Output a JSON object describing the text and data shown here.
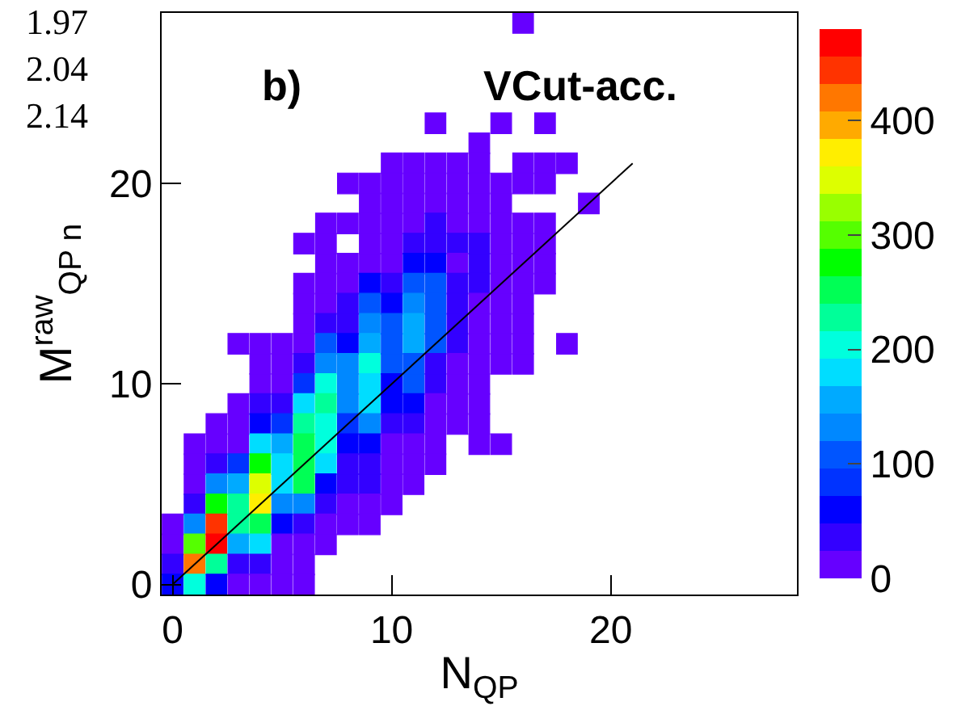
{
  "chart_data": {
    "type": "scatter",
    "marker": "square",
    "xlabel": "N$_{QP}$",
    "ylabel": "M$^{raw}$$_{QP n}$",
    "annotations": [
      "b)",
      "VCut-acc.",
      "1.97",
      "2.04",
      "2.14"
    ],
    "xlim": [
      -0.5,
      28.5
    ],
    "ylim": [
      -0.5,
      28.5
    ],
    "xticks": [
      0,
      10,
      20
    ],
    "yticks": [
      0,
      10,
      20
    ],
    "clim": [
      0,
      480
    ],
    "cticks": [
      0,
      100,
      200,
      300,
      400
    ],
    "x": [
      16,
      12,
      15,
      17,
      14,
      10,
      11,
      12,
      13,
      14,
      16,
      17,
      18,
      8,
      9,
      10,
      11,
      12,
      13,
      14,
      15,
      16,
      17,
      9,
      10,
      11,
      12,
      13,
      14,
      15,
      19,
      7,
      8,
      9,
      10,
      11,
      12,
      13,
      14,
      15,
      16,
      17,
      6,
      7,
      9,
      10,
      11,
      12,
      13,
      14,
      15,
      16,
      17,
      7,
      8,
      9,
      10,
      11,
      12,
      13,
      14,
      15,
      16,
      17,
      6,
      7,
      8,
      9,
      10,
      11,
      12,
      13,
      14,
      15,
      16,
      17,
      6,
      7,
      8,
      9,
      10,
      11,
      12,
      13,
      14,
      15,
      16,
      6,
      7,
      8,
      9,
      10,
      11,
      12,
      13,
      14,
      15,
      16,
      3,
      4,
      5,
      6,
      7,
      8,
      9,
      10,
      11,
      12,
      13,
      14,
      15,
      16,
      18,
      4,
      5,
      6,
      7,
      8,
      9,
      10,
      11,
      12,
      13,
      14,
      15,
      16,
      4,
      5,
      6,
      7,
      8,
      9,
      10,
      11,
      12,
      13,
      14,
      3,
      4,
      5,
      6,
      7,
      8,
      9,
      10,
      11,
      12,
      13,
      14,
      2,
      3,
      4,
      5,
      6,
      7,
      8,
      9,
      10,
      11,
      12,
      13,
      14,
      1,
      2,
      3,
      4,
      5,
      6,
      7,
      8,
      9,
      10,
      11,
      12,
      14,
      15,
      1,
      2,
      3,
      4,
      5,
      6,
      7,
      8,
      9,
      10,
      11,
      12,
      1,
      2,
      3,
      4,
      5,
      6,
      7,
      8,
      9,
      10,
      11,
      1,
      2,
      3,
      4,
      5,
      6,
      7,
      8,
      9,
      10,
      0,
      1,
      2,
      3,
      4,
      5,
      6,
      7,
      8,
      9,
      0,
      1,
      2,
      3,
      4,
      5,
      6,
      7,
      0,
      1,
      2,
      3,
      4,
      5,
      6,
      0,
      1,
      2,
      3,
      4,
      5,
      6
    ],
    "values": [
      28,
      23,
      23,
      23,
      22,
      21,
      21,
      21,
      21,
      21,
      21,
      21,
      21,
      20,
      20,
      20,
      20,
      20,
      20,
      20,
      20,
      20,
      20,
      19,
      19,
      19,
      19,
      19,
      19,
      19,
      19,
      18,
      18,
      18,
      18,
      18,
      18,
      18,
      18,
      18,
      18,
      18,
      17,
      17,
      17,
      17,
      17,
      17,
      17,
      17,
      17,
      17,
      17,
      16,
      16,
      16,
      16,
      16,
      16,
      16,
      16,
      16,
      16,
      16,
      15,
      15,
      15,
      15,
      15,
      15,
      15,
      15,
      15,
      15,
      15,
      15,
      14,
      14,
      14,
      14,
      14,
      14,
      14,
      14,
      14,
      14,
      14,
      13,
      13,
      13,
      13,
      13,
      13,
      13,
      13,
      13,
      13,
      13,
      12,
      12,
      12,
      12,
      12,
      12,
      12,
      12,
      12,
      12,
      12,
      12,
      12,
      12,
      12,
      11,
      11,
      11,
      11,
      11,
      11,
      11,
      11,
      11,
      11,
      11,
      11,
      11,
      10,
      10,
      10,
      10,
      10,
      10,
      10,
      10,
      10,
      10,
      10,
      9,
      9,
      9,
      9,
      9,
      9,
      9,
      9,
      9,
      9,
      9,
      9,
      8,
      8,
      8,
      8,
      8,
      8,
      8,
      8,
      8,
      8,
      8,
      8,
      8,
      7,
      7,
      7,
      7,
      7,
      7,
      7,
      7,
      7,
      7,
      7,
      7,
      7,
      7,
      6,
      6,
      6,
      6,
      6,
      6,
      6,
      6,
      6,
      6,
      6,
      6,
      5,
      5,
      5,
      5,
      5,
      5,
      5,
      5,
      5,
      5,
      5,
      4,
      4,
      4,
      4,
      4,
      4,
      4,
      4,
      4,
      4,
      3,
      3,
      3,
      3,
      3,
      3,
      3,
      3,
      3,
      3,
      2,
      2,
      2,
      2,
      2,
      2,
      2,
      2,
      1,
      1,
      1,
      1,
      1,
      1,
      1,
      0,
      0,
      0,
      0,
      0,
      0,
      0
    ],
    "cvalues": [
      12,
      12,
      12,
      12,
      12,
      12,
      12,
      12,
      12,
      12,
      12,
      12,
      12,
      12,
      12,
      12,
      12,
      12,
      12,
      12,
      12,
      12,
      12,
      12,
      12,
      12,
      12,
      12,
      12,
      12,
      12,
      12,
      12,
      12,
      12,
      12,
      36,
      12,
      12,
      12,
      12,
      12,
      12,
      12,
      12,
      12,
      36,
      36,
      36,
      36,
      12,
      12,
      12,
      12,
      12,
      12,
      12,
      60,
      60,
      12,
      36,
      12,
      12,
      12,
      12,
      12,
      12,
      60,
      36,
      108,
      108,
      36,
      36,
      12,
      12,
      12,
      12,
      12,
      36,
      108,
      60,
      132,
      108,
      36,
      12,
      12,
      12,
      12,
      36,
      36,
      132,
      108,
      156,
      108,
      36,
      12,
      12,
      12,
      12,
      12,
      12,
      12,
      108,
      60,
      156,
      108,
      156,
      108,
      36,
      12,
      12,
      12,
      12,
      12,
      12,
      36,
      132,
      132,
      204,
      108,
      108,
      36,
      12,
      12,
      12,
      12,
      12,
      12,
      84,
      204,
      132,
      180,
      60,
      108,
      36,
      12,
      12,
      12,
      36,
      36,
      180,
      228,
      132,
      180,
      60,
      60,
      12,
      12,
      12,
      12,
      12,
      60,
      84,
      228,
      204,
      84,
      132,
      36,
      36,
      12,
      12,
      12,
      12,
      12,
      12,
      180,
      156,
      252,
      204,
      60,
      60,
      12,
      12,
      12,
      12,
      12,
      12,
      36,
      84,
      276,
      180,
      252,
      180,
      36,
      36,
      12,
      12,
      12,
      12,
      132,
      156,
      348,
      180,
      252,
      60,
      36,
      36,
      12,
      12,
      36,
      276,
      228,
      372,
      132,
      132,
      36,
      12,
      12,
      12,
      12,
      132,
      444,
      228,
      252,
      60,
      36,
      12,
      12,
      12,
      12,
      300,
      468,
      156,
      180,
      12,
      12,
      12,
      36,
      420,
      228,
      36,
      36,
      12,
      12,
      60,
      204,
      60,
      12,
      12,
      12,
      12
    ],
    "colors": [
      "#6600ff",
      "#6600ff",
      "#6600ff",
      "#6600ff",
      "#6600ff",
      "#6600ff",
      "#6600ff",
      "#6600ff",
      "#6600ff",
      "#6600ff",
      "#6600ff",
      "#6600ff",
      "#6600ff",
      "#6600ff",
      "#6600ff",
      "#6600ff",
      "#6600ff",
      "#6600ff",
      "#6600ff",
      "#6600ff",
      "#6600ff",
      "#6600ff",
      "#6600ff",
      "#6600ff",
      "#6600ff",
      "#6600ff",
      "#6600ff",
      "#6600ff",
      "#6600ff",
      "#6600ff",
      "#6600ff",
      "#6600ff",
      "#6600ff",
      "#6600ff",
      "#6600ff",
      "#6600ff",
      "#3300ff",
      "#6600ff",
      "#6600ff",
      "#6600ff",
      "#6600ff",
      "#6600ff",
      "#6600ff",
      "#6600ff",
      "#6600ff",
      "#6600ff",
      "#3300ff",
      "#3300ff",
      "#3300ff",
      "#3300ff",
      "#6600ff",
      "#6600ff",
      "#6600ff",
      "#6600ff",
      "#6600ff",
      "#6600ff",
      "#6600ff",
      "#0000ff",
      "#0000ff",
      "#6600ff",
      "#3300ff",
      "#6600ff",
      "#6600ff",
      "#6600ff",
      "#6600ff",
      "#6600ff",
      "#6600ff",
      "#0000ff",
      "#3300ff",
      "#0055ff",
      "#0055ff",
      "#3300ff",
      "#3300ff",
      "#6600ff",
      "#6600ff",
      "#6600ff",
      "#6600ff",
      "#6600ff",
      "#3300ff",
      "#0055ff",
      "#0000ff",
      "#0088ff",
      "#0055ff",
      "#3300ff",
      "#6600ff",
      "#6600ff",
      "#6600ff",
      "#6600ff",
      "#3300ff",
      "#3300ff",
      "#0088ff",
      "#0055ff",
      "#00aaff",
      "#0055ff",
      "#3300ff",
      "#6600ff",
      "#6600ff",
      "#6600ff",
      "#6600ff",
      "#6600ff",
      "#6600ff",
      "#6600ff",
      "#0055ff",
      "#0000ff",
      "#00aaff",
      "#0055ff",
      "#00aaff",
      "#0055ff",
      "#3300ff",
      "#6600ff",
      "#6600ff",
      "#6600ff",
      "#6600ff",
      "#6600ff",
      "#6600ff",
      "#3300ff",
      "#0088ff",
      "#0088ff",
      "#00ffdd",
      "#0055ff",
      "#0055ff",
      "#3300ff",
      "#6600ff",
      "#6600ff",
      "#6600ff",
      "#6600ff",
      "#6600ff",
      "#6600ff",
      "#0033ff",
      "#00ffdd",
      "#0088ff",
      "#00ddff",
      "#0000ff",
      "#0055ff",
      "#3300ff",
      "#6600ff",
      "#6600ff",
      "#6600ff",
      "#3300ff",
      "#3300ff",
      "#00ddff",
      "#00ff99",
      "#0088ff",
      "#00ddff",
      "#0000ff",
      "#0000ff",
      "#6600ff",
      "#6600ff",
      "#6600ff",
      "#6600ff",
      "#6600ff",
      "#0000ff",
      "#0033ff",
      "#00ff99",
      "#00ffdd",
      "#0033ff",
      "#0088ff",
      "#3300ff",
      "#3300ff",
      "#6600ff",
      "#6600ff",
      "#6600ff",
      "#6600ff",
      "#6600ff",
      "#6600ff",
      "#00ddff",
      "#00aaff",
      "#00ff55",
      "#00ffdd",
      "#0000ff",
      "#0000ff",
      "#6600ff",
      "#6600ff",
      "#6600ff",
      "#6600ff",
      "#6600ff",
      "#6600ff",
      "#3300ff",
      "#0033ff",
      "#00ff00",
      "#00ddff",
      "#00ff55",
      "#00ddff",
      "#3300ff",
      "#3300ff",
      "#6600ff",
      "#6600ff",
      "#6600ff",
      "#6600ff",
      "#0088ff",
      "#00aaff",
      "#ddff00",
      "#00ddff",
      "#00ff55",
      "#0000ff",
      "#3300ff",
      "#3300ff",
      "#6600ff",
      "#6600ff",
      "#3300ff",
      "#00ff00",
      "#00ff99",
      "#ffee00",
      "#0088ff",
      "#0088ff",
      "#3300ff",
      "#6600ff",
      "#6600ff",
      "#6600ff",
      "#6600ff",
      "#0088ff",
      "#ff3300",
      "#00ff99",
      "#00ff55",
      "#0000ff",
      "#3300ff",
      "#6600ff",
      "#6600ff",
      "#6600ff",
      "#6600ff",
      "#55ff00",
      "#ff0000",
      "#00aaff",
      "#00ddff",
      "#6600ff",
      "#6600ff",
      "#6600ff",
      "#3300ff",
      "#ff7700",
      "#00ff99",
      "#3300ff",
      "#3300ff",
      "#6600ff",
      "#6600ff",
      "#0000ff",
      "#00ffdd",
      "#0000ff",
      "#6600ff",
      "#6600ff",
      "#6600ff",
      "#6600ff"
    ],
    "series": [
      {
        "type": "line",
        "x": [
          0,
          21
        ],
        "values": [
          0,
          21
        ],
        "color": "#000000",
        "marker": "none"
      }
    ]
  }
}
